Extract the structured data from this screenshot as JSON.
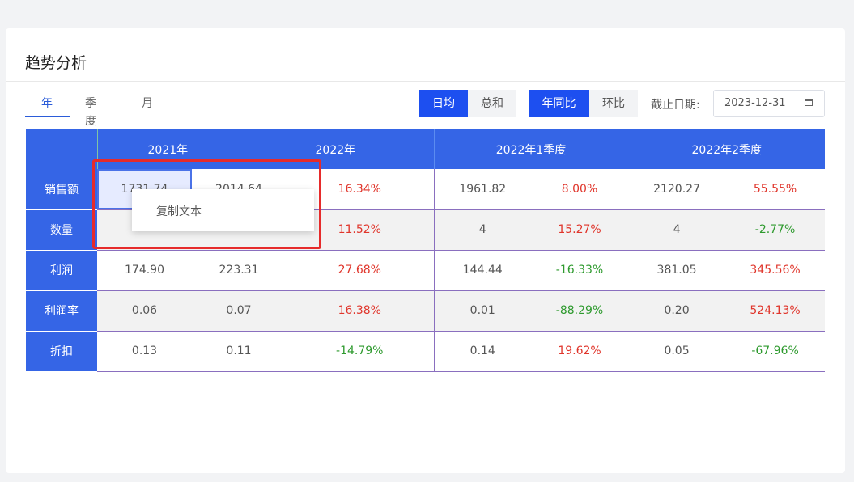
{
  "card": {
    "title": "趋势分析"
  },
  "tabs": [
    {
      "label": "年",
      "active": true
    },
    {
      "label": "季度",
      "active": false
    },
    {
      "label": "月",
      "active": false
    }
  ],
  "seg_avg": [
    {
      "label": "日均",
      "active": true
    },
    {
      "label": "总和",
      "active": false
    }
  ],
  "seg_cmp": [
    {
      "label": "年同比",
      "active": true
    },
    {
      "label": "环比",
      "active": false
    }
  ],
  "date": {
    "label": "截止日期:",
    "value": "2023-12-31",
    "icon": "calendar-icon"
  },
  "table": {
    "headers": [
      "2021年",
      "2022年",
      "2022年1季度",
      "2022年2季度"
    ],
    "rows": [
      {
        "label": "销售额",
        "cells": [
          "1731.74",
          "2014.64",
          "16.34%",
          "1961.82",
          "8.00%",
          "2120.27",
          "55.55%"
        ]
      },
      {
        "label": "数量",
        "cells": [
          "",
          "",
          "11.52%",
          "4",
          "15.27%",
          "4",
          "-2.77%"
        ]
      },
      {
        "label": "利润",
        "cells": [
          "174.90",
          "223.31",
          "27.68%",
          "144.44",
          "-16.33%",
          "381.05",
          "345.56%"
        ]
      },
      {
        "label": "利润率",
        "cells": [
          "0.06",
          "0.07",
          "16.38%",
          "0.01",
          "-88.29%",
          "0.20",
          "524.13%"
        ]
      },
      {
        "label": "折扣",
        "cells": [
          "0.13",
          "0.11",
          "-14.79%",
          "0.14",
          "19.62%",
          "0.05",
          "-67.96%"
        ]
      }
    ]
  },
  "context_menu": {
    "item": "复制文本"
  },
  "colors": {
    "accent": "#1d4ff0",
    "header": "#3565e6",
    "positive": "#e0352b",
    "negative": "#2e9a2e",
    "highlight": "#e62b2b"
  }
}
